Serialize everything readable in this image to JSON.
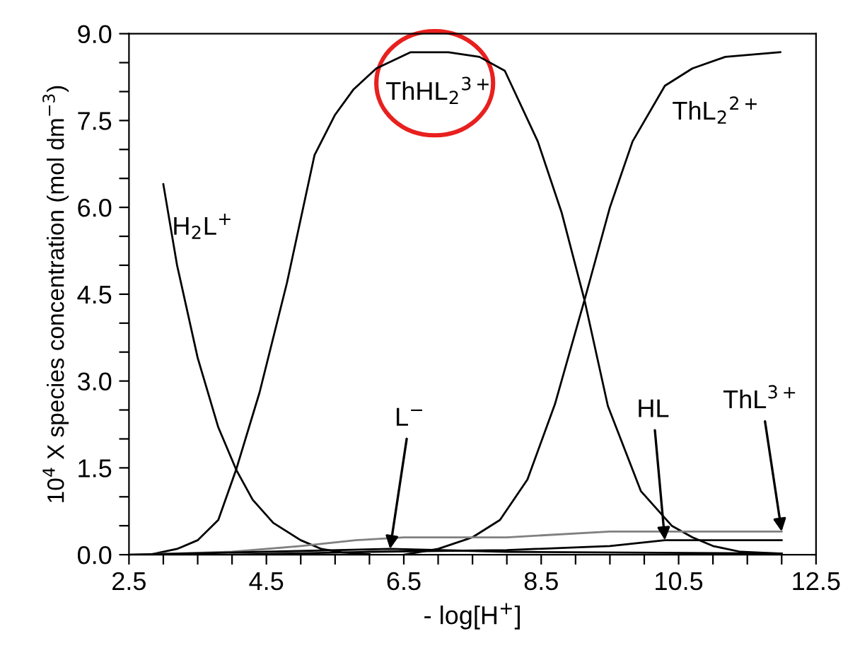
{
  "chart_data": {
    "type": "line",
    "xlabel": "- log[H$^{+}$]",
    "ylabel": "10$^{4}$ X species concentration (mol dm$^{−3}$)",
    "xlim": [
      2.5,
      12.5
    ],
    "ylim": [
      0,
      9.0
    ],
    "xticks": [
      2.5,
      {
        "value": 3.0,
        "label": null
      },
      {
        "value": 3.5,
        "label": null
      },
      {
        "value": 4.0,
        "label": null
      },
      4.5,
      {
        "value": 5.0,
        "label": null
      },
      {
        "value": 5.5,
        "label": null
      },
      {
        "value": 6.0,
        "label": null
      },
      6.5,
      {
        "value": 7.0,
        "label": null
      },
      {
        "value": 7.5,
        "label": null
      },
      {
        "value": 8.0,
        "label": null
      },
      8.5,
      {
        "value": 9.0,
        "label": null
      },
      {
        "value": 9.5,
        "label": null
      },
      {
        "value": 10.0,
        "label": null
      },
      10.5,
      {
        "value": 11.0,
        "label": null
      },
      {
        "value": 11.5,
        "label": null
      },
      {
        "value": 12.0,
        "label": null
      },
      12.5
    ],
    "yticks": [
      {
        "value": 0,
        "label": "0.0"
      },
      {
        "value": 0.5,
        "label": null
      },
      {
        "value": 1.0,
        "label": null
      },
      1.5,
      {
        "value": 2.0,
        "label": null
      },
      {
        "value": 2.5,
        "label": null
      },
      {
        "value": 3,
        "label": "3.0"
      },
      {
        "value": 3.5,
        "label": null
      },
      {
        "value": 4.0,
        "label": null
      },
      4.5,
      {
        "value": 5.0,
        "label": null
      },
      {
        "value": 5.5,
        "label": null
      },
      {
        "value": 6,
        "label": "6.0"
      },
      {
        "value": 6.5,
        "label": null
      },
      {
        "value": 7.0,
        "label": null
      },
      7.5,
      {
        "value": 8.0,
        "label": null
      },
      {
        "value": 8.5,
        "label": null
      },
      {
        "value": 9,
        "label": "9.0"
      }
    ],
    "grid": false,
    "legend": false,
    "marker": "none",
    "line_style": "solid",
    "series": [
      {
        "name": "H$_{2}$L$^{+}$",
        "color": "#000000",
        "x": [
          3.0,
          3.2,
          3.5,
          3.8,
          4.06,
          4.3,
          4.6,
          5.0,
          5.3,
          5.6,
          6.0
        ],
        "values": [
          6.4,
          5.0,
          3.4,
          2.2,
          1.47,
          0.95,
          0.55,
          0.25,
          0.1,
          0.04,
          0.01
        ]
      },
      {
        "name": "ThHL$_{2}$$^{3+}$",
        "color": "#000000",
        "x": [
          2.8,
          3.2,
          3.5,
          3.8,
          4.06,
          4.4,
          4.8,
          5.2,
          5.5,
          5.77,
          6.1,
          6.6,
          7.15,
          7.6,
          7.97,
          8.45,
          8.8,
          9.13,
          9.47,
          9.95,
          10.4,
          10.7,
          11.0,
          11.4,
          12.0
        ],
        "values": [
          0.0,
          0.1,
          0.25,
          0.6,
          1.47,
          2.8,
          4.7,
          6.9,
          7.6,
          8.04,
          8.4,
          8.68,
          8.68,
          8.6,
          8.36,
          7.14,
          5.9,
          4.4,
          2.57,
          1.1,
          0.5,
          0.3,
          0.15,
          0.05,
          0.02
        ]
      },
      {
        "name": "ThL$_{2}$$^{2+}$",
        "color": "#000000",
        "x": [
          6.5,
          7.0,
          7.5,
          7.9,
          8.3,
          8.7,
          9.13,
          9.2,
          9.5,
          9.83,
          10.3,
          10.7,
          11.18,
          11.98
        ],
        "values": [
          0.0,
          0.1,
          0.3,
          0.6,
          1.3,
          2.6,
          4.4,
          4.7,
          6.0,
          7.14,
          8.1,
          8.4,
          8.6,
          8.68
        ]
      },
      {
        "name": "ThL$^{3+}$",
        "color": "#808080",
        "x": [
          2.5,
          4.0,
          5.0,
          5.8,
          6.5,
          8.0,
          9.5,
          12.0
        ],
        "values": [
          0.0,
          0.05,
          0.15,
          0.25,
          0.3,
          0.3,
          0.4,
          0.4
        ]
      },
      {
        "name": "HL",
        "color": "#000000",
        "x": [
          4.0,
          6.0,
          8.0,
          9.5,
          10.3,
          12.0
        ],
        "values": [
          0.0,
          0.05,
          0.08,
          0.15,
          0.25,
          0.25
        ]
      },
      {
        "name": "L$^{−}$",
        "color": "#000000",
        "x": [
          2.5,
          4.5,
          6.3,
          8.0,
          12.0
        ],
        "values": [
          0.0,
          0.05,
          0.1,
          0.05,
          0.02
        ]
      }
    ]
  }
}
